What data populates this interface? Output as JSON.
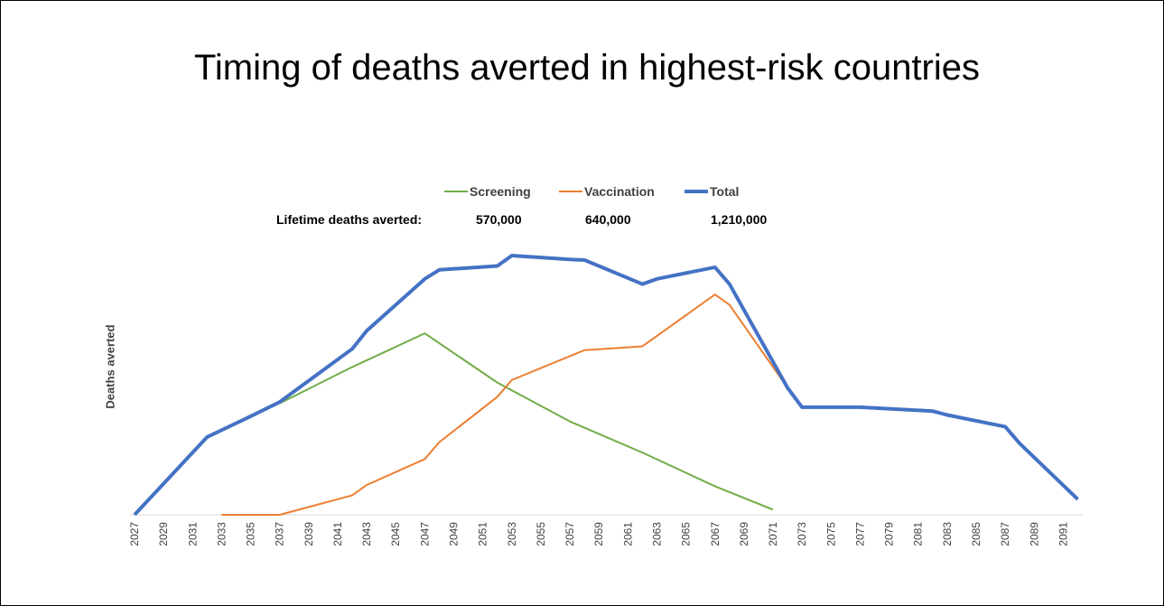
{
  "title": "Timing of deaths averted in highest-risk countries",
  "lifetime": {
    "label": "Lifetime deaths averted:",
    "screening": "570,000",
    "vaccination": "640,000",
    "total": "1,210,000"
  },
  "colors": {
    "screening": "#70ad47",
    "vaccination": "#ed7d31",
    "total": "#4472c4",
    "axis": "#d9d9d9",
    "text": "#404040"
  },
  "chart_data": {
    "type": "line",
    "title": "Timing of deaths averted in highest-risk countries",
    "xlabel": "",
    "ylabel": "Deaths averted",
    "x_ticks": [
      "2027",
      "2029",
      "2031",
      "2033",
      "2035",
      "2037",
      "2039",
      "2041",
      "2043",
      "2045",
      "2047",
      "2049",
      "2051",
      "2053",
      "2055",
      "2057",
      "2059",
      "2061",
      "2063",
      "2065",
      "2067",
      "2069",
      "2071",
      "2073",
      "2075",
      "2077",
      "2079",
      "2081",
      "2083",
      "2085",
      "2087",
      "2089",
      "2091"
    ],
    "xlim": [
      2027,
      2092
    ],
    "ylim": [
      0,
      100
    ],
    "y_axis_values_shown": false,
    "grid": false,
    "legend_position": "top",
    "series": [
      {
        "name": "Screening",
        "color": "#70ad47",
        "width": 2,
        "points": [
          [
            2037,
            43
          ],
          [
            2042,
            57
          ],
          [
            2047,
            70
          ],
          [
            2052,
            51
          ],
          [
            2057,
            36
          ],
          [
            2062,
            24
          ],
          [
            2067,
            11
          ],
          [
            2071,
            2
          ]
        ]
      },
      {
        "name": "Vaccination",
        "color": "#ed7d31",
        "width": 2,
        "points": [
          [
            2033,
            0
          ],
          [
            2037,
            0
          ],
          [
            2042,
            7.5
          ],
          [
            2043,
            11.5
          ],
          [
            2047,
            21.5
          ],
          [
            2048,
            28
          ],
          [
            2052,
            45.5
          ],
          [
            2053,
            52
          ],
          [
            2058,
            63.5
          ],
          [
            2062,
            65
          ],
          [
            2067,
            85
          ],
          [
            2068,
            81
          ],
          [
            2072,
            49
          ]
        ]
      },
      {
        "name": "Total",
        "color": "#4472c4",
        "width": 4,
        "points": [
          [
            2027,
            0
          ],
          [
            2032,
            30
          ],
          [
            2035,
            38
          ],
          [
            2037,
            43.5
          ],
          [
            2042,
            64
          ],
          [
            2043,
            71
          ],
          [
            2047,
            91
          ],
          [
            2048,
            94.5
          ],
          [
            2052,
            96
          ],
          [
            2053,
            100
          ],
          [
            2057,
            98.5
          ],
          [
            2058,
            98.3
          ],
          [
            2062,
            89
          ],
          [
            2063,
            91
          ],
          [
            2067,
            95.5
          ],
          [
            2068,
            89
          ],
          [
            2072,
            49
          ],
          [
            2073,
            41.5
          ],
          [
            2077,
            41.5
          ],
          [
            2082,
            40
          ],
          [
            2083,
            38.5
          ],
          [
            2087,
            34
          ],
          [
            2088,
            27.5
          ],
          [
            2092,
            6
          ]
        ]
      }
    ]
  }
}
